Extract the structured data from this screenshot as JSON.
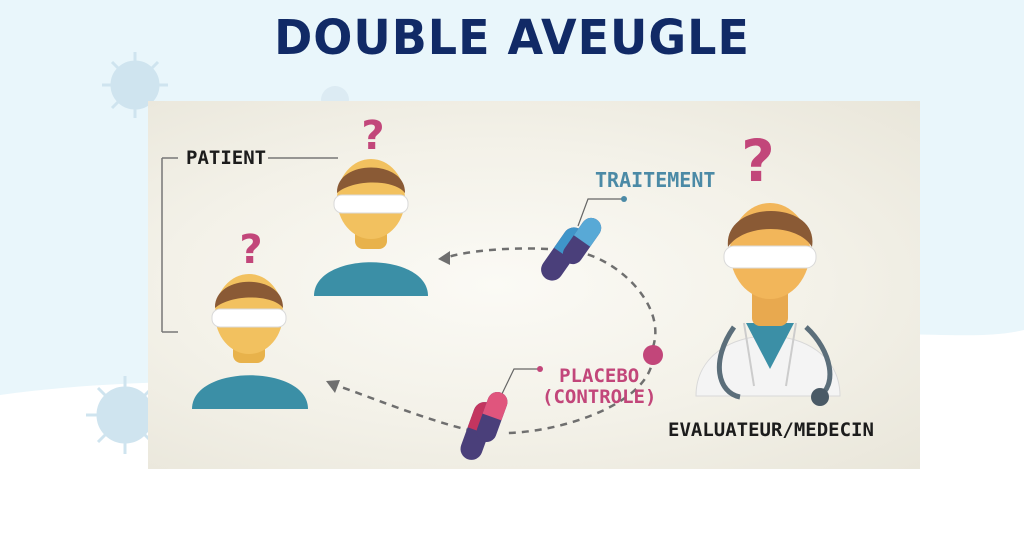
{
  "title": "DOUBLE AVEUGLE",
  "diagram": {
    "labels": {
      "patient": "PATIENT",
      "treatment": "TRAITEMENT",
      "placebo_line1": "PLACEBO",
      "placebo_line2": "(CONTROLE)",
      "evaluator": "EVALUATEUR/MEDECIN"
    },
    "question_mark": "?",
    "colors": {
      "title": "#112a66",
      "treatment": "#4b8aa6",
      "placebo": "#c2467a",
      "patient_shirt": "#3b8fa6",
      "hair": "#8a5a35",
      "skin": "#f2c15f",
      "capsule_treatment": "#3f95c9",
      "capsule_placebo": "#c3355f",
      "capsule_dark": "#4a3f7a"
    },
    "icons": [
      "question-mark-icon",
      "capsule-icon",
      "arrow-icon",
      "patient-icon",
      "doctor-icon",
      "virus-icon"
    ]
  }
}
